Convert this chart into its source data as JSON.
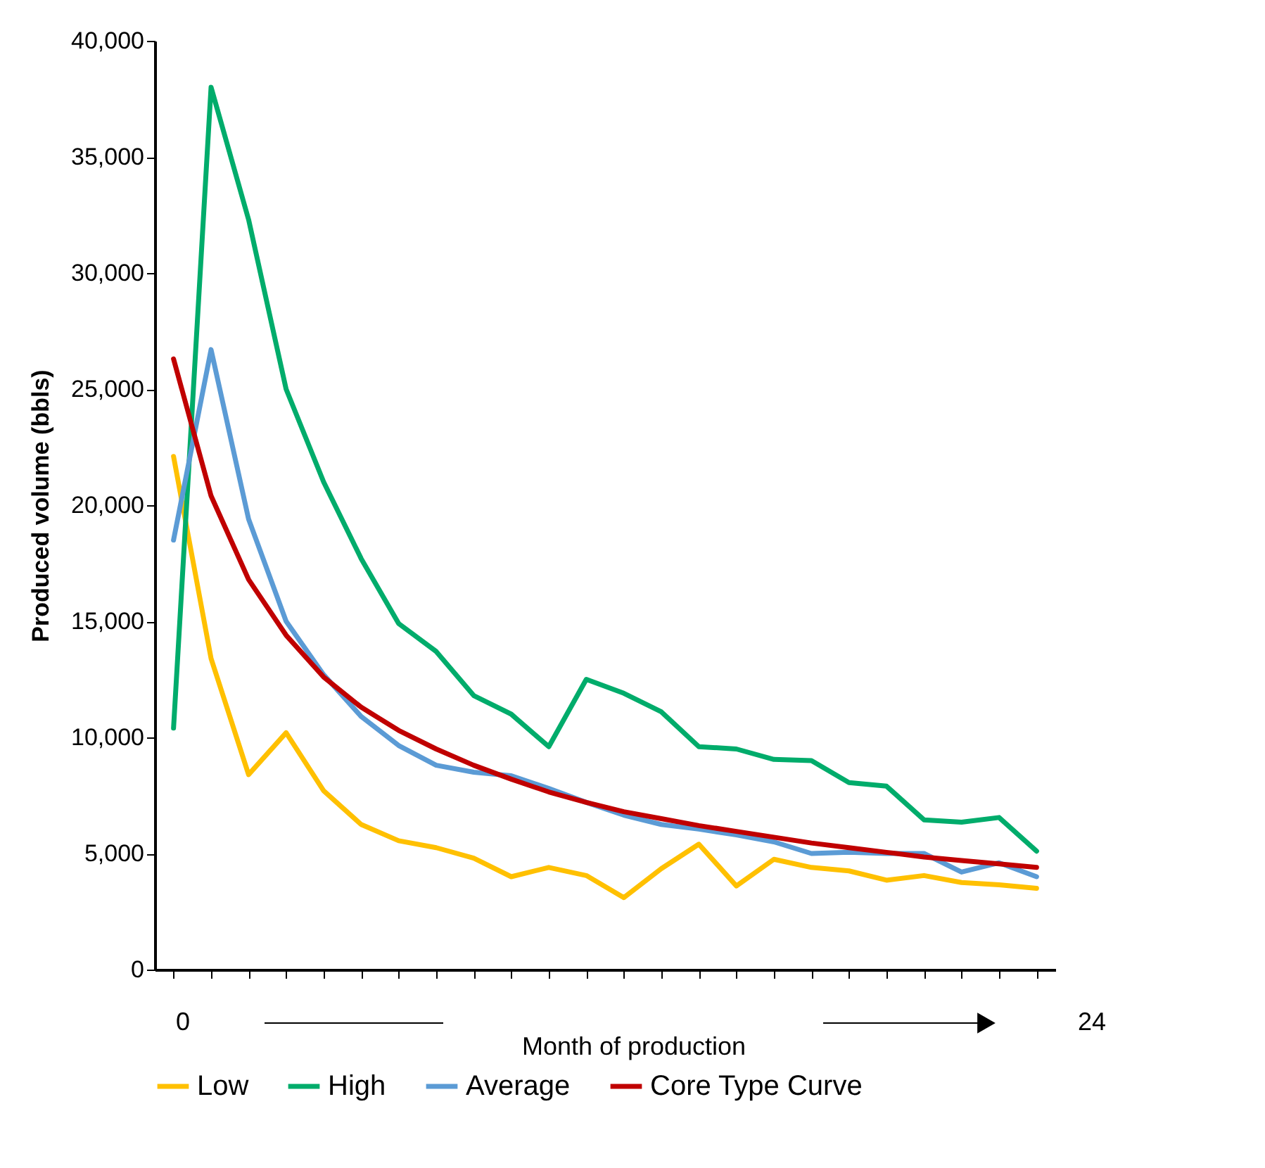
{
  "chart_data": {
    "type": "line",
    "ylabel": "Produced volume (bbls)",
    "xlabel": "Month of production",
    "annotations": [
      "0",
      "24"
    ],
    "categories": [
      null,
      null,
      null,
      null,
      null,
      null,
      null,
      null,
      null,
      null,
      null,
      null,
      null,
      null,
      null,
      null,
      null,
      null,
      null,
      null,
      null,
      null,
      null,
      null
    ],
    "ylim": [
      0,
      40000
    ],
    "yticks": [
      0,
      {
        "value": 5000,
        "label": "5,000"
      },
      {
        "value": 10000,
        "label": "10,000"
      },
      {
        "value": 15000,
        "label": "15,000"
      },
      {
        "value": 20000,
        "label": "20,000"
      },
      {
        "value": 25000,
        "label": "25,000"
      },
      {
        "value": 30000,
        "label": "30,000"
      },
      {
        "value": 35000,
        "label": "35,000"
      },
      {
        "value": 40000,
        "label": "40,000"
      }
    ],
    "grid": false,
    "legend": "bottom",
    "series": [
      {
        "name": "Low",
        "color": "#ffc000",
        "values": [
          22100,
          13400,
          8400,
          10200,
          7700,
          6250,
          5550,
          5250,
          4800,
          4000,
          4400,
          4050,
          3100,
          4350,
          5400,
          3600,
          4750,
          4400,
          4250,
          3850,
          4050,
          3750,
          3650,
          3500
        ]
      },
      {
        "name": "High",
        "color": "#00ac6b",
        "values": [
          10400,
          38000,
          32300,
          25000,
          21000,
          17700,
          14900,
          13700,
          11800,
          11000,
          9600,
          12500,
          11900,
          11100,
          9600,
          9500,
          9050,
          9000,
          8050,
          7900,
          6450,
          6350,
          6550,
          5100
        ]
      },
      {
        "name": "Average",
        "color": "#5b9bd5",
        "values": [
          18500,
          26700,
          19400,
          15000,
          12700,
          10900,
          9650,
          8800,
          8500,
          8350,
          7800,
          7200,
          6650,
          6250,
          6050,
          5800,
          5500,
          5000,
          5050,
          5000,
          5000,
          4200,
          4600,
          4000
        ]
      },
      {
        "name": "Core Type Curve",
        "color": "#c00000",
        "values": [
          26300,
          20400,
          16800,
          14400,
          12600,
          11300,
          10300,
          9500,
          8800,
          8200,
          7650,
          7200,
          6800,
          6500,
          6200,
          5950,
          5700,
          5450,
          5250,
          5050,
          4850,
          4700,
          4550,
          4400
        ]
      }
    ]
  }
}
